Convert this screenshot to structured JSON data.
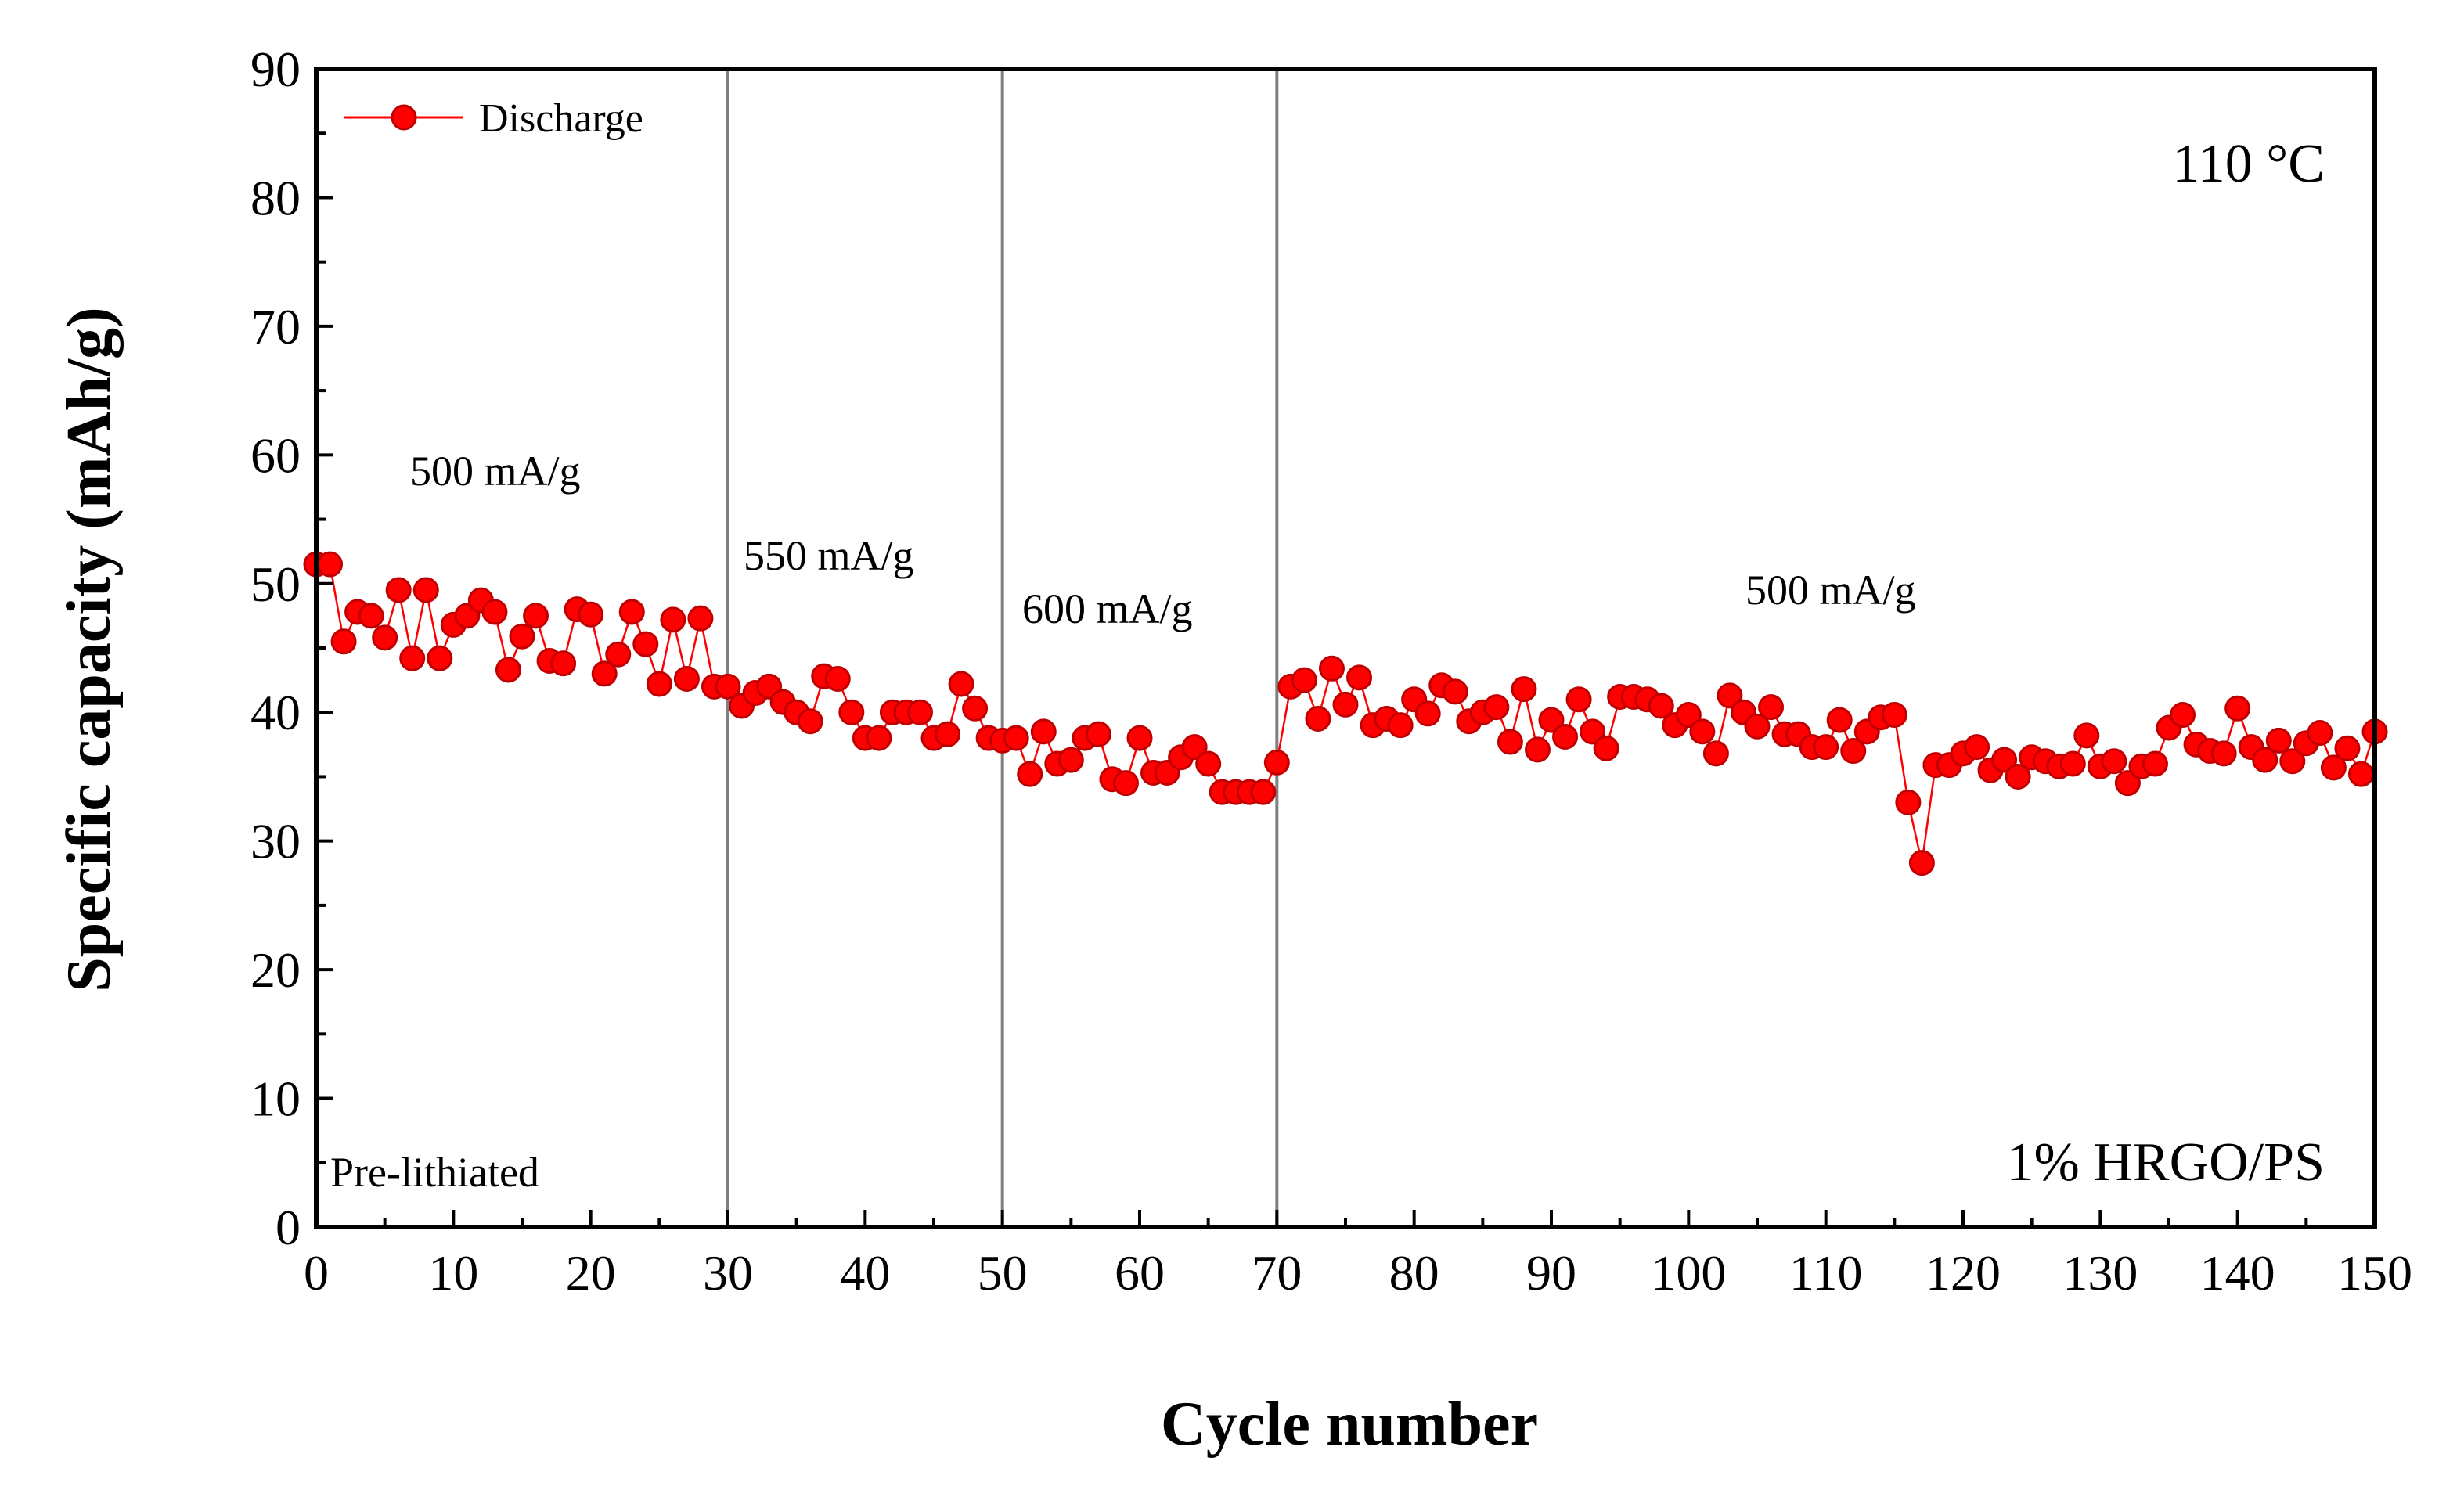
{
  "chart_data": {
    "type": "scatter",
    "title": "",
    "xlabel": "Cycle number",
    "ylabel": "Specific capacity (mAh/g)",
    "xlim": [
      0,
      150
    ],
    "ylim": [
      0,
      90
    ],
    "xticks": [
      0,
      10,
      20,
      30,
      40,
      50,
      60,
      70,
      80,
      90,
      100,
      110,
      120,
      130,
      140,
      150
    ],
    "yticks": [
      0,
      10,
      20,
      30,
      40,
      50,
      60,
      70,
      80,
      90
    ],
    "grid": false,
    "legend": {
      "position": "top-left",
      "entries": [
        "Discharge"
      ]
    },
    "colors": {
      "series": "#ff0000",
      "axis": "#000000",
      "separator": "#808080"
    },
    "separators_x": [
      30,
      50,
      70
    ],
    "annotations": {
      "temperature": "110 °C",
      "sample": "1% HRGO/PS",
      "condition": "Pre-lithiated",
      "rate_1": "500 mA/g",
      "rate_2": "550 mA/g",
      "rate_3": "600 mA/g",
      "rate_4": "500 mA/g"
    },
    "series": [
      {
        "name": "Discharge",
        "x": [
          0,
          1,
          2,
          3,
          4,
          5,
          6,
          7,
          8,
          9,
          10,
          11,
          12,
          13,
          14,
          15,
          16,
          17,
          18,
          19,
          20,
          21,
          22,
          23,
          24,
          25,
          26,
          27,
          28,
          29,
          30,
          31,
          32,
          33,
          34,
          35,
          36,
          37,
          38,
          39,
          40,
          41,
          42,
          43,
          44,
          45,
          46,
          47,
          48,
          49,
          50,
          51,
          52,
          53,
          54,
          55,
          56,
          57,
          58,
          59,
          60,
          61,
          62,
          63,
          64,
          65,
          66,
          67,
          68,
          69,
          70,
          71,
          72,
          73,
          74,
          75,
          76,
          77,
          78,
          79,
          80,
          81,
          82,
          83,
          84,
          85,
          86,
          87,
          88,
          89,
          90,
          91,
          92,
          93,
          94,
          95,
          96,
          97,
          98,
          99,
          100,
          101,
          102,
          103,
          104,
          105,
          106,
          107,
          108,
          109,
          110,
          111,
          112,
          113,
          114,
          115,
          116,
          117,
          118,
          119,
          120,
          121,
          122,
          123,
          124,
          125,
          126,
          127,
          128,
          129,
          130,
          131,
          132,
          133,
          134,
          135,
          136,
          137,
          138,
          139,
          140,
          141,
          142,
          143,
          144,
          145,
          146,
          147,
          148,
          149,
          150
        ],
        "values": [
          51.5,
          51.5,
          45.5,
          47.8,
          47.5,
          45.8,
          49.5,
          44.2,
          49.5,
          44.2,
          46.8,
          47.5,
          48.7,
          47.8,
          43.3,
          45.9,
          47.5,
          44.0,
          43.8,
          48.0,
          47.6,
          43.0,
          44.5,
          47.8,
          45.3,
          42.2,
          47.2,
          42.6,
          47.3,
          42.0,
          42.0,
          40.5,
          41.5,
          42.0,
          40.8,
          40.0,
          39.3,
          42.8,
          42.6,
          40.0,
          38.0,
          38.0,
          40.0,
          40.0,
          40.0,
          38.0,
          38.3,
          42.2,
          40.3,
          38.0,
          37.8,
          38.0,
          35.2,
          38.5,
          36.0,
          36.3,
          38.0,
          38.3,
          34.8,
          34.5,
          38.0,
          35.3,
          35.3,
          36.5,
          37.3,
          36.0,
          33.8,
          33.8,
          33.8,
          33.8,
          36.1,
          42.0,
          42.5,
          39.5,
          43.4,
          40.6,
          42.7,
          39.0,
          39.5,
          39.0,
          41.0,
          39.9,
          42.1,
          41.6,
          39.3,
          40.0,
          40.4,
          37.7,
          41.8,
          37.1,
          39.4,
          38.1,
          41.0,
          38.5,
          37.2,
          41.2,
          41.2,
          41.0,
          40.5,
          39.0,
          39.8,
          38.5,
          36.8,
          41.3,
          40.0,
          38.9,
          40.4,
          38.3,
          38.3,
          37.3,
          37.3,
          39.4,
          37.0,
          38.5,
          39.6,
          39.8,
          33.0,
          28.3,
          35.9,
          35.9,
          36.8,
          37.3,
          35.5,
          36.3,
          35.0,
          36.5,
          36.2,
          35.8,
          36.0,
          38.2,
          35.8,
          36.2,
          34.5,
          35.8,
          36.0,
          38.8,
          39.8,
          37.5,
          37.0,
          36.8,
          40.3,
          37.3,
          36.3,
          37.8,
          36.2,
          37.6,
          38.4,
          35.7,
          37.2,
          35.2,
          38.5
        ]
      }
    ]
  }
}
